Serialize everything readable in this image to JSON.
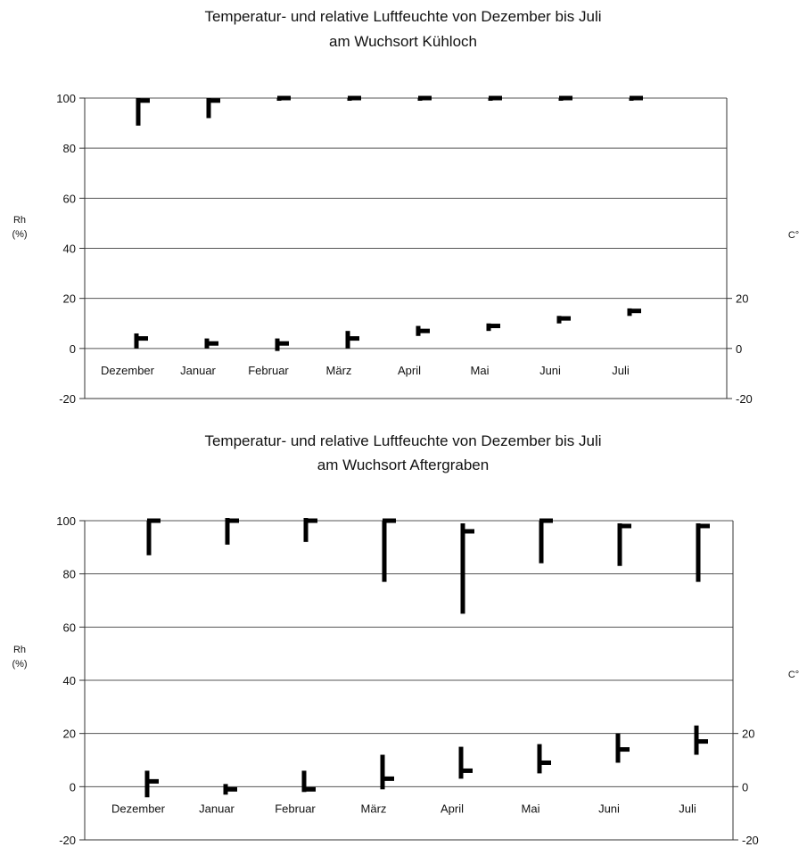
{
  "chart_data": [
    {
      "type": "bar",
      "title_line1": "Temperatur- und relative Luftfeuchte von Dezember bis Juli",
      "title_line2": "am Wuchsort Kühloch",
      "ylabel_left_line1": "Rh",
      "ylabel_left_line2": "(%)",
      "ylabel_right": "C°",
      "ylim_left": [
        -20,
        100
      ],
      "yticks_left": [
        "100",
        "80",
        "60",
        "40",
        "20",
        "0",
        "-20"
      ],
      "yticks_left_values": [
        100,
        80,
        60,
        40,
        20,
        0,
        -20
      ],
      "ylim_right": [
        -20,
        100
      ],
      "yticks_right": [
        "20",
        "0",
        "-20"
      ],
      "yticks_right_values": [
        20,
        0,
        -20
      ],
      "grid": true,
      "categories": [
        "Dezember",
        "Januar",
        "Februar",
        "März",
        "April",
        "Mai",
        "Juni",
        "Juli"
      ],
      "series": [
        {
          "name": "",
          "min": [
            89,
            92,
            100,
            100,
            100,
            100,
            100,
            100
          ],
          "max": [
            100,
            100,
            100,
            100,
            100,
            100,
            100,
            100
          ],
          "mean": [
            99,
            99,
            100,
            100,
            100,
            100,
            100,
            100
          ]
        },
        {
          "name": "",
          "min": [
            0,
            0,
            -1,
            0,
            5,
            7,
            10,
            13
          ],
          "max": [
            6,
            4,
            4,
            7,
            9,
            10,
            13,
            16
          ],
          "mean": [
            4,
            2,
            2,
            4,
            7,
            9,
            12,
            15
          ]
        }
      ]
    },
    {
      "type": "bar",
      "title_line1": "Temperatur- und relative Luftfeuchte von Dezember bis Juli",
      "title_line2": "am Wuchsort Aftergraben",
      "ylabel_left_line1": "Rh",
      "ylabel_left_line2": "(%)",
      "ylabel_right": "C°",
      "ylim_left": [
        -20,
        100
      ],
      "yticks_left": [
        "100",
        "80",
        "60",
        "40",
        "20",
        "0",
        "-20"
      ],
      "yticks_left_values": [
        100,
        80,
        60,
        40,
        20,
        0,
        -20
      ],
      "ylim_right": [
        -20,
        100
      ],
      "yticks_right": [
        "20",
        "0",
        "-20"
      ],
      "yticks_right_values": [
        20,
        0,
        -20
      ],
      "grid": true,
      "categories": [
        "Dezember",
        "Januar",
        "Februar",
        "März",
        "April",
        "Mai",
        "Juni",
        "Juli"
      ],
      "series": [
        {
          "name": "",
          "min": [
            87,
            91,
            92,
            77,
            65,
            84,
            83,
            77
          ],
          "max": [
            100,
            101,
            101,
            100,
            99,
            100,
            99,
            99
          ],
          "mean": [
            100,
            100,
            100,
            100,
            96,
            100,
            98,
            98
          ]
        },
        {
          "name": "",
          "min": [
            -4,
            -3,
            -2,
            -1,
            3,
            5,
            9,
            12
          ],
          "max": [
            6,
            1,
            6,
            12,
            15,
            16,
            20,
            23
          ],
          "mean": [
            2,
            -1,
            -1,
            3,
            6,
            9,
            14,
            17
          ]
        }
      ]
    }
  ]
}
